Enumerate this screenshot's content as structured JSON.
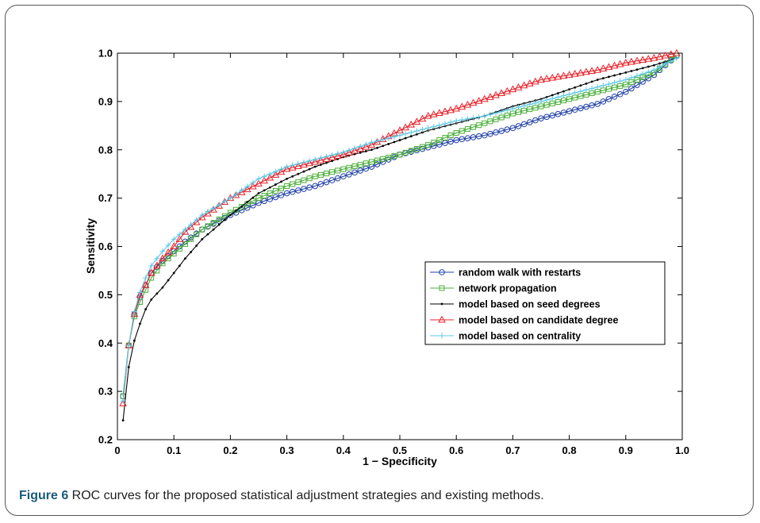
{
  "caption": {
    "label": "Figure 6",
    "text": " ROC curves for the proposed statistical adjustment strategies and existing methods."
  },
  "chart_data": {
    "type": "line",
    "xlabel": "1 − Specificity",
    "ylabel": "Sensitivity",
    "xlim": [
      0,
      1
    ],
    "ylim": [
      0.2,
      1
    ],
    "xticks": [
      "0",
      "0.1",
      "0.2",
      "0.3",
      "0.4",
      "0.5",
      "0.6",
      "0.7",
      "0.8",
      "0.9",
      "1.0"
    ],
    "yticks": [
      "0.2",
      "0.3",
      "0.4",
      "0.5",
      "0.6",
      "0.7",
      "0.8",
      "0.9",
      "1.0"
    ],
    "legend_position": "right-middle",
    "grid": false,
    "series": [
      {
        "name": "random walk with restarts",
        "color": "#1f3fa8",
        "marker": "circle",
        "x": [
          0.01,
          0.02,
          0.03,
          0.04,
          0.05,
          0.06,
          0.08,
          0.1,
          0.12,
          0.15,
          0.2,
          0.25,
          0.3,
          0.35,
          0.4,
          0.45,
          0.5,
          0.55,
          0.6,
          0.65,
          0.7,
          0.75,
          0.8,
          0.85,
          0.9,
          0.95,
          0.99
        ],
        "y": [
          0.29,
          0.395,
          0.46,
          0.495,
          0.52,
          0.545,
          0.57,
          0.59,
          0.61,
          0.635,
          0.665,
          0.69,
          0.71,
          0.725,
          0.745,
          0.765,
          0.79,
          0.805,
          0.82,
          0.83,
          0.845,
          0.865,
          0.88,
          0.895,
          0.92,
          0.955,
          0.995
        ]
      },
      {
        "name": "network propagation",
        "color": "#4caf3a",
        "marker": "square",
        "x": [
          0.01,
          0.02,
          0.03,
          0.04,
          0.05,
          0.06,
          0.08,
          0.1,
          0.12,
          0.15,
          0.2,
          0.25,
          0.3,
          0.35,
          0.4,
          0.45,
          0.5,
          0.55,
          0.6,
          0.65,
          0.7,
          0.75,
          0.8,
          0.85,
          0.9,
          0.95,
          0.99
        ],
        "y": [
          0.29,
          0.395,
          0.455,
          0.485,
          0.51,
          0.535,
          0.565,
          0.585,
          0.605,
          0.635,
          0.67,
          0.7,
          0.725,
          0.745,
          0.76,
          0.775,
          0.79,
          0.81,
          0.835,
          0.855,
          0.875,
          0.89,
          0.905,
          0.92,
          0.935,
          0.96,
          0.995
        ]
      },
      {
        "name": "model based on seed degrees",
        "color": "#000000",
        "marker": "dot",
        "x": [
          0.01,
          0.02,
          0.03,
          0.04,
          0.05,
          0.06,
          0.08,
          0.1,
          0.12,
          0.15,
          0.2,
          0.25,
          0.3,
          0.35,
          0.4,
          0.45,
          0.5,
          0.55,
          0.6,
          0.65,
          0.7,
          0.75,
          0.8,
          0.85,
          0.9,
          0.95,
          0.99
        ],
        "y": [
          0.24,
          0.35,
          0.405,
          0.44,
          0.47,
          0.49,
          0.515,
          0.545,
          0.575,
          0.615,
          0.665,
          0.71,
          0.74,
          0.765,
          0.785,
          0.8,
          0.82,
          0.84,
          0.855,
          0.87,
          0.89,
          0.905,
          0.925,
          0.945,
          0.96,
          0.975,
          0.99
        ]
      },
      {
        "name": "model based on candidate degree",
        "color": "#e8222a",
        "marker": "triangle",
        "x": [
          0.01,
          0.02,
          0.03,
          0.04,
          0.05,
          0.06,
          0.08,
          0.1,
          0.12,
          0.15,
          0.2,
          0.25,
          0.3,
          0.35,
          0.4,
          0.45,
          0.5,
          0.55,
          0.6,
          0.65,
          0.7,
          0.75,
          0.8,
          0.85,
          0.9,
          0.95,
          0.99
        ],
        "y": [
          0.275,
          0.395,
          0.46,
          0.5,
          0.52,
          0.545,
          0.575,
          0.6,
          0.63,
          0.66,
          0.7,
          0.73,
          0.76,
          0.775,
          0.79,
          0.81,
          0.84,
          0.87,
          0.885,
          0.905,
          0.925,
          0.945,
          0.955,
          0.965,
          0.98,
          0.99,
          1.0
        ]
      },
      {
        "name": "model based on centrality",
        "color": "#5ec8e6",
        "marker": "plus",
        "x": [
          0.01,
          0.02,
          0.03,
          0.04,
          0.05,
          0.06,
          0.08,
          0.1,
          0.12,
          0.15,
          0.2,
          0.25,
          0.3,
          0.35,
          0.4,
          0.45,
          0.5,
          0.55,
          0.6,
          0.65,
          0.7,
          0.75,
          0.8,
          0.85,
          0.9,
          0.95,
          0.99
        ],
        "y": [
          0.28,
          0.395,
          0.465,
          0.505,
          0.535,
          0.56,
          0.59,
          0.615,
          0.635,
          0.665,
          0.7,
          0.74,
          0.765,
          0.78,
          0.795,
          0.815,
          0.83,
          0.845,
          0.86,
          0.87,
          0.885,
          0.9,
          0.915,
          0.93,
          0.945,
          0.965,
          0.99
        ]
      }
    ]
  }
}
